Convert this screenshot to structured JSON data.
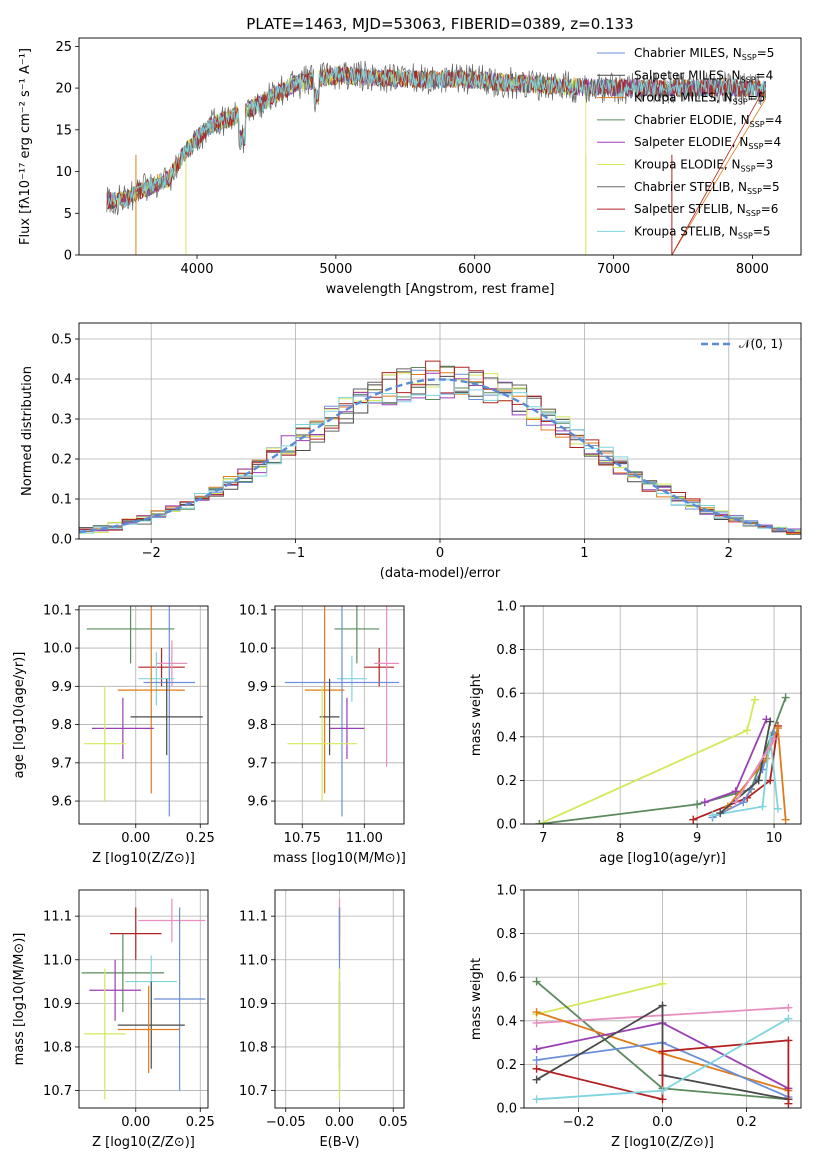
{
  "figure": {
    "title": "PLATE=1463, MJD=53063, FIBERID=0389, z=0.133",
    "series_colors": [
      "#6b8fd8",
      "#4a4a4a",
      "#e07b1a",
      "#5a8a5e",
      "#9b3fb5",
      "#d4e85a",
      "#666666",
      "#b22222",
      "#7fd4dd",
      "#e88fbf"
    ]
  },
  "chart_data": [
    {
      "id": "spectrum",
      "type": "line",
      "xlabel": "wavelength [Angstrom, rest frame]",
      "ylabel": "Flux [fλ10⁻¹⁷ erg cm⁻² s⁻¹ A⁻¹]",
      "xlim": [
        3150,
        8350
      ],
      "ylim": [
        0,
        26
      ],
      "xticks": [
        4000,
        5000,
        6000,
        7000,
        8000
      ],
      "yticks": [
        0,
        5,
        10,
        15,
        20,
        25
      ],
      "grid": false,
      "legend_position": "top-right",
      "continuum_points": [
        [
          3350,
          6.5
        ],
        [
          3500,
          6.7
        ],
        [
          3600,
          7.8
        ],
        [
          3800,
          9.2
        ],
        [
          3900,
          12.0
        ],
        [
          4000,
          14.0
        ],
        [
          4100,
          15.5
        ],
        [
          4300,
          16.8
        ],
        [
          4500,
          18.5
        ],
        [
          4700,
          20.5
        ],
        [
          5000,
          21.5
        ],
        [
          5300,
          21.3
        ],
        [
          5600,
          21.0
        ],
        [
          5900,
          21.1
        ],
        [
          6200,
          20.7
        ],
        [
          6500,
          20.4
        ],
        [
          6800,
          20.1
        ],
        [
          7100,
          20.0
        ],
        [
          7500,
          20.0
        ],
        [
          7800,
          20.1
        ],
        [
          8100,
          19.8
        ]
      ],
      "noise_amplitude": 1.2,
      "series": [
        {
          "name": "Chabrier MILES, N_SSP=5",
          "legend": "Chabrier MILES, N",
          "n": "5",
          "color": "#6b8fd8"
        },
        {
          "name": "Salpeter MILES, N_SSP=4",
          "legend": "Salpeter MILES, N",
          "n": "4",
          "color": "#4a4a4a"
        },
        {
          "name": "Kroupa MILES, N_SSP=5",
          "legend": "Kroupa MILES, N",
          "n": "5",
          "color": "#e07b1a"
        },
        {
          "name": "Chabrier ELODIE, N_SSP=4",
          "legend": "Chabrier ELODIE, N",
          "n": "4",
          "color": "#5a8a5e"
        },
        {
          "name": "Salpeter ELODIE, N_SSP=4",
          "legend": "Salpeter ELODIE, N",
          "n": "4",
          "color": "#9b3fb5"
        },
        {
          "name": "Kroupa ELODIE, N_SSP=3",
          "legend": "Kroupa ELODIE, N",
          "n": "3",
          "color": "#d4e85a"
        },
        {
          "name": "Chabrier STELIB, N_SSP=5",
          "legend": "Chabrier STELIB, N",
          "n": "5",
          "color": "#666666"
        },
        {
          "name": "Salpeter STELIB, N_SSP=6",
          "legend": "Salpeter STELIB, N",
          "n": "6",
          "color": "#b22222"
        },
        {
          "name": "Kroupa STELIB, N_SSP=5",
          "legend": "Kroupa STELIB, N",
          "n": "5",
          "color": "#7fd4dd"
        }
      ],
      "legend_sub": "SSP"
    },
    {
      "id": "residuals",
      "type": "line",
      "xlabel": "(data-model)/error",
      "ylabel": "Normed distribution",
      "xlim": [
        -2.5,
        2.5
      ],
      "ylim": [
        0,
        0.54
      ],
      "xticks": [
        -2,
        -1,
        0,
        1,
        2
      ],
      "yticks": [
        0.0,
        0.1,
        0.2,
        0.3,
        0.4,
        0.5
      ],
      "grid": true,
      "legend_position": "top-right",
      "legend_label": "𝒩(0, 1)",
      "gaussian": {
        "mu": 0,
        "sigma": 1,
        "color": "#5b8bd6"
      },
      "bin_width": 0.1
    },
    {
      "id": "age-vs-z",
      "type": "scatter",
      "xlabel": "Z [log10(Z/Z⊙)]",
      "ylabel": "age  [log10(age/yr)]",
      "xlim": [
        -0.22,
        0.28
      ],
      "ylim": [
        9.54,
        10.11
      ],
      "xticks": [
        0.0,
        0.25
      ],
      "yticks": [
        9.6,
        9.7,
        9.8,
        9.9,
        10.0,
        10.1
      ],
      "grid": true,
      "points": [
        {
          "x": -0.02,
          "y": 10.05,
          "xerr": 0.17,
          "yerr": 0.09,
          "color": "#5a8a5e"
        },
        {
          "x": 0.1,
          "y": 9.95,
          "xerr": 0.09,
          "yerr": 0.05,
          "color": "#b22222"
        },
        {
          "x": 0.14,
          "y": 9.96,
          "xerr": 0.06,
          "yerr": 0.06,
          "color": "#e88fbf"
        },
        {
          "x": 0.08,
          "y": 9.92,
          "xerr": 0.07,
          "yerr": 0.07,
          "color": "#7fd4dd"
        },
        {
          "x": 0.13,
          "y": 9.91,
          "xerr": 0.1,
          "yerr": 0.35,
          "color": "#6b8fd8"
        },
        {
          "x": 0.06,
          "y": 9.89,
          "xerr": 0.13,
          "yerr": 0.27,
          "color": "#e07b1a"
        },
        {
          "x": 0.12,
          "y": 9.82,
          "xerr": 0.14,
          "yerr": 0.1,
          "color": "#4a4a4a"
        },
        {
          "x": -0.05,
          "y": 9.79,
          "xerr": 0.12,
          "yerr": 0.08,
          "color": "#9b3fb5"
        },
        {
          "x": -0.12,
          "y": 9.75,
          "xerr": 0.08,
          "yerr": 0.15,
          "color": "#d4e85a"
        }
      ]
    },
    {
      "id": "age-vs-mass",
      "type": "scatter",
      "xlabel": "mass [log10(M/M⊙)]",
      "ylabel": "",
      "xlim": [
        10.64,
        11.16
      ],
      "ylim": [
        9.54,
        10.11
      ],
      "xticks": [
        10.75,
        11.0
      ],
      "yticks": [
        9.6,
        9.7,
        9.8,
        9.9,
        10.0,
        10.1
      ],
      "grid": true,
      "points": [
        {
          "x": 10.97,
          "y": 10.05,
          "xerr": 0.09,
          "yerr": 0.09,
          "color": "#5a8a5e"
        },
        {
          "x": 11.06,
          "y": 9.95,
          "xerr": 0.06,
          "yerr": 0.05,
          "color": "#b22222"
        },
        {
          "x": 11.09,
          "y": 9.96,
          "xerr": 0.05,
          "yerr": 0.27,
          "color": "#e88fbf"
        },
        {
          "x": 10.95,
          "y": 9.92,
          "xerr": 0.06,
          "yerr": 0.06,
          "color": "#7fd4dd"
        },
        {
          "x": 10.91,
          "y": 9.91,
          "xerr": 0.23,
          "yerr": 0.35,
          "color": "#6b8fd8"
        },
        {
          "x": 10.84,
          "y": 9.89,
          "xerr": 0.08,
          "yerr": 0.27,
          "color": "#e07b1a"
        },
        {
          "x": 10.86,
          "y": 9.82,
          "xerr": 0.04,
          "yerr": 0.1,
          "color": "#4a4a4a"
        },
        {
          "x": 10.93,
          "y": 9.79,
          "xerr": 0.07,
          "yerr": 0.08,
          "color": "#9b3fb5"
        },
        {
          "x": 10.83,
          "y": 9.75,
          "xerr": 0.14,
          "yerr": 0.15,
          "color": "#d4e85a"
        }
      ]
    },
    {
      "id": "weight-vs-age",
      "type": "line",
      "xlabel": "age  [log10(age/yr)]",
      "ylabel": "mass weight",
      "xlim": [
        6.75,
        10.35
      ],
      "ylim": [
        0,
        1
      ],
      "xticks": [
        7,
        8,
        9,
        10
      ],
      "yticks": [
        0.0,
        0.2,
        0.4,
        0.6,
        0.8,
        1.0
      ],
      "grid": true,
      "series": [
        {
          "color": "#d4e85a",
          "points": [
            [
              6.95,
              0.0
            ],
            [
              9.65,
              0.43
            ],
            [
              9.75,
              0.57
            ]
          ]
        },
        {
          "color": "#5a8a5e",
          "points": [
            [
              6.95,
              0.0
            ],
            [
              9.0,
              0.09
            ],
            [
              9.7,
              0.16
            ],
            [
              10.15,
              0.58
            ]
          ]
        },
        {
          "color": "#b22222",
          "points": [
            [
              8.95,
              0.02
            ],
            [
              9.65,
              0.12
            ],
            [
              9.95,
              0.2
            ],
            [
              10.05,
              0.45
            ]
          ]
        },
        {
          "color": "#6b8fd8",
          "points": [
            [
              9.2,
              0.03
            ],
            [
              9.6,
              0.1
            ],
            [
              9.85,
              0.25
            ],
            [
              10.0,
              0.42
            ]
          ]
        },
        {
          "color": "#e07b1a",
          "points": [
            [
              9.4,
              0.08
            ],
            [
              9.9,
              0.3
            ],
            [
              10.05,
              0.44
            ],
            [
              10.15,
              0.02
            ]
          ]
        },
        {
          "color": "#9b3fb5",
          "points": [
            [
              9.1,
              0.1
            ],
            [
              9.5,
              0.15
            ],
            [
              9.9,
              0.48
            ]
          ]
        },
        {
          "color": "#7fd4dd",
          "points": [
            [
              9.2,
              0.04
            ],
            [
              9.85,
              0.08
            ],
            [
              9.95,
              0.4
            ],
            [
              10.05,
              0.07
            ]
          ]
        },
        {
          "color": "#4a4a4a",
          "points": [
            [
              9.3,
              0.05
            ],
            [
              9.8,
              0.2
            ],
            [
              9.95,
              0.47
            ]
          ]
        },
        {
          "color": "#e88fbf",
          "points": [
            [
              9.5,
              0.1
            ],
            [
              10.0,
              0.39
            ]
          ]
        }
      ]
    },
    {
      "id": "mass-vs-z",
      "type": "scatter",
      "xlabel": "Z [log10(Z/Z⊙)]",
      "ylabel": "mass [log10(M/M⊙)]",
      "xlim": [
        -0.22,
        0.28
      ],
      "ylim": [
        10.66,
        11.16
      ],
      "xticks": [
        0.0,
        0.25
      ],
      "yticks": [
        10.7,
        10.8,
        10.9,
        11.0,
        11.1
      ],
      "grid": true,
      "points": [
        {
          "x": 0.14,
          "y": 11.09,
          "xerr": 0.13,
          "yerr": 0.05,
          "color": "#e88fbf"
        },
        {
          "x": 0.0,
          "y": 11.06,
          "xerr": 0.1,
          "yerr": 0.06,
          "color": "#b22222"
        },
        {
          "x": -0.05,
          "y": 10.97,
          "xerr": 0.16,
          "yerr": 0.09,
          "color": "#5a8a5e"
        },
        {
          "x": 0.06,
          "y": 10.95,
          "xerr": 0.1,
          "yerr": 0.06,
          "color": "#7fd4dd"
        },
        {
          "x": -0.08,
          "y": 10.93,
          "xerr": 0.1,
          "yerr": 0.07,
          "color": "#9b3fb5"
        },
        {
          "x": 0.17,
          "y": 10.91,
          "xerr": 0.1,
          "yerr": 0.21,
          "color": "#6b8fd8"
        },
        {
          "x": 0.06,
          "y": 10.85,
          "xerr": 0.13,
          "yerr": 0.1,
          "color": "#4a4a4a"
        },
        {
          "x": 0.05,
          "y": 10.84,
          "xerr": 0.12,
          "yerr": 0.1,
          "color": "#e07b1a"
        },
        {
          "x": -0.12,
          "y": 10.83,
          "xerr": 0.08,
          "yerr": 0.15,
          "color": "#d4e85a"
        }
      ]
    },
    {
      "id": "mass-vs-ebv",
      "type": "scatter",
      "xlabel": "E(B-V)",
      "ylabel": "",
      "xlim": [
        -0.06,
        0.06
      ],
      "ylim": [
        10.66,
        11.16
      ],
      "xticks": [
        -0.05,
        0.0,
        0.05
      ],
      "yticks": [
        10.7,
        10.8,
        10.9,
        11.0,
        11.1
      ],
      "grid": true,
      "points": [
        {
          "x": 0.0,
          "y": 11.09,
          "xerr": 0.0,
          "yerr": 0.05,
          "color": "#e88fbf"
        },
        {
          "x": 0.0,
          "y": 11.06,
          "xerr": 0.0,
          "yerr": 0.06,
          "color": "#b22222"
        },
        {
          "x": 0.0,
          "y": 10.91,
          "xerr": 0.0,
          "yerr": 0.21,
          "color": "#6b8fd8"
        },
        {
          "x": 0.0,
          "y": 10.85,
          "xerr": 0.0,
          "yerr": 0.1,
          "color": "#4a4a4a"
        },
        {
          "x": 0.0,
          "y": 10.83,
          "xerr": 0.0,
          "yerr": 0.15,
          "color": "#d4e85a"
        }
      ]
    },
    {
      "id": "weight-vs-z",
      "type": "line",
      "xlabel": "Z [log10(Z/Z⊙)]",
      "ylabel": "mass weight",
      "xlim": [
        -0.33,
        0.33
      ],
      "ylim": [
        0,
        1
      ],
      "xticks": [
        -0.2,
        0.0,
        0.2
      ],
      "yticks": [
        0.0,
        0.2,
        0.4,
        0.6,
        0.8,
        1.0
      ],
      "grid": true,
      "series": [
        {
          "color": "#d4e85a",
          "points": [
            [
              -0.3,
              0.43
            ],
            [
              0.0,
              0.57
            ]
          ]
        },
        {
          "color": "#5a8a5e",
          "points": [
            [
              -0.3,
              0.58
            ],
            [
              0.0,
              0.09
            ],
            [
              0.3,
              0.04
            ]
          ]
        },
        {
          "color": "#e88fbf",
          "points": [
            [
              -0.3,
              0.39
            ],
            [
              0.3,
              0.46
            ]
          ]
        },
        {
          "color": "#e07b1a",
          "points": [
            [
              -0.3,
              0.44
            ],
            [
              0.0,
              0.25
            ],
            [
              0.3,
              0.08
            ]
          ]
        },
        {
          "color": "#9b3fb5",
          "points": [
            [
              -0.3,
              0.27
            ],
            [
              0.0,
              0.39
            ],
            [
              0.3,
              0.09
            ]
          ]
        },
        {
          "color": "#6b8fd8",
          "points": [
            [
              -0.3,
              0.22
            ],
            [
              0.0,
              0.3
            ],
            [
              0.3,
              0.05
            ]
          ]
        },
        {
          "color": "#4a4a4a",
          "points": [
            [
              -0.3,
              0.13
            ],
            [
              0.0,
              0.47
            ],
            [
              0.0,
              0.15
            ],
            [
              0.3,
              0.04
            ]
          ]
        },
        {
          "color": "#b22222",
          "points": [
            [
              -0.3,
              0.18
            ],
            [
              0.0,
              0.04
            ],
            [
              0.0,
              0.26
            ],
            [
              0.3,
              0.31
            ],
            [
              0.3,
              0.02
            ]
          ]
        },
        {
          "color": "#7fd4dd",
          "points": [
            [
              -0.3,
              0.04
            ],
            [
              0.0,
              0.08
            ],
            [
              0.3,
              0.41
            ]
          ]
        }
      ]
    }
  ]
}
